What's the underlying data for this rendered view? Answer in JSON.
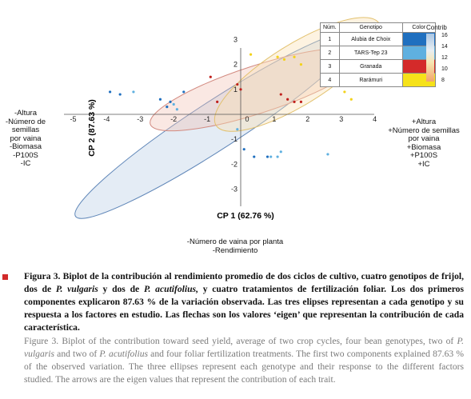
{
  "chart_data": {
    "type": "scatter",
    "xlabel": "CP 1 (62.76 %)",
    "ylabel": "CP 2 (87.63 %)",
    "xlim": [
      -5,
      4
    ],
    "ylim": [
      -3,
      3
    ],
    "x_ticks": [
      "-5",
      "-4",
      "-3",
      "-2",
      "-1",
      "0",
      "1",
      "2",
      "3",
      "4"
    ],
    "y_ticks": [
      "3",
      "2",
      "1",
      "-1",
      "-2",
      "-3"
    ],
    "grid": false,
    "series": [
      {
        "name": "Alubia de Choix",
        "color": "#1f6fbf",
        "points": [
          [
            -3.9,
            0.9
          ],
          [
            -3.6,
            0.8
          ],
          [
            -2.4,
            0.6
          ],
          [
            -2.1,
            0.5
          ],
          [
            -2.2,
            0.3
          ],
          [
            0.1,
            -1.4
          ],
          [
            0.4,
            -1.7
          ],
          [
            0.8,
            -1.7
          ],
          [
            -1.7,
            0.9
          ]
        ]
      },
      {
        "name": "TARS-Tep 23",
        "color": "#5fb0e0",
        "points": [
          [
            -3.2,
            0.9
          ],
          [
            -2.0,
            0.4
          ],
          [
            -1.9,
            0.2
          ],
          [
            -0.1,
            -0.6
          ],
          [
            0.9,
            -1.7
          ],
          [
            1.1,
            -1.7
          ],
          [
            1.2,
            -1.5
          ],
          [
            2.6,
            -1.6
          ]
        ]
      },
      {
        "name": "Granada",
        "color": "#c0201c",
        "points": [
          [
            -0.9,
            1.5
          ],
          [
            -0.1,
            1.2
          ],
          [
            0.0,
            1.0
          ],
          [
            1.2,
            0.8
          ],
          [
            1.4,
            0.6
          ],
          [
            1.6,
            0.5
          ],
          [
            1.8,
            0.5
          ],
          [
            -0.7,
            0.5
          ]
        ]
      },
      {
        "name": "Rarámuri",
        "color": "#f3d21a",
        "points": [
          [
            0.3,
            2.4
          ],
          [
            1.3,
            2.2
          ],
          [
            1.6,
            2.3
          ],
          [
            1.8,
            2.0
          ],
          [
            2.9,
            1.3
          ],
          [
            3.1,
            0.9
          ],
          [
            3.3,
            0.6
          ],
          [
            1.1,
            2.3
          ]
        ]
      }
    ],
    "ellipses": [
      {
        "genotype": "Alubia de Choix",
        "cx": -0.7,
        "cy": -0.4,
        "rx": 6.15,
        "ry": 0.95,
        "angle_deg": -33,
        "color": "#1f6fbf"
      },
      {
        "genotype": "Granada",
        "cx": 0.5,
        "cy": 1.0,
        "rx": 4.1,
        "ry": 0.95,
        "angle_deg": -18,
        "color": "#c0201c"
      },
      {
        "genotype": "Rarámuri",
        "cx": 1.7,
        "cy": 1.6,
        "rx": 3.5,
        "ry": 1.2,
        "angle_deg": -32,
        "color": "#f3d21a"
      }
    ],
    "left_labels": [
      "-Altura",
      "-Número de semillas",
      "por vaina",
      "-Biomasa",
      "-P100S",
      "-IC"
    ],
    "right_labels": [
      "+Altura",
      "+Número de semillas",
      "por vaina",
      "+Biomasa",
      "+P100S",
      "+IC"
    ],
    "bottom_labels": [
      "-Número de vaina por planta",
      "-Rendimiento"
    ],
    "legend_table": {
      "headers": [
        "Núm.",
        "Genotipo",
        "Color"
      ],
      "rows": [
        {
          "num": "1",
          "genotipo": "Alubia de Choix",
          "color": "#1f6fbf"
        },
        {
          "num": "2",
          "genotipo": "TARS-Tep 23",
          "color": "#5fb0e0"
        },
        {
          "num": "3",
          "genotipo": "Granada",
          "color": "#d42a2a"
        },
        {
          "num": "4",
          "genotipo": "Rarámuri",
          "color": "#f6e21a"
        }
      ]
    },
    "colorbar": {
      "title": "Contrib",
      "ticks": [
        "16",
        "14",
        "12",
        "10",
        "8"
      ]
    }
  },
  "caption": {
    "es_parts": [
      {
        "text": "Figura 3. Biplot de la contribución al rendimiento promedio de dos ciclos de cultivo, cuatro genotipos de frijol, dos de ",
        "italic": false
      },
      {
        "text": "P. vulgaris",
        "italic": true
      },
      {
        "text": " y dos de ",
        "italic": false
      },
      {
        "text": "P. acutifolius,",
        "italic": true
      },
      {
        "text": " y cuatro tratamientos de fertilización foliar. Los dos primeros componentes explicaron 87.63 % de la variación observada. Las tres elipses representan a cada genotipo y su respuesta a los factores en estudio. Las flechas son los valores ‘eigen’ que representan la contribución de cada característica.",
        "italic": false
      }
    ],
    "en_parts": [
      {
        "text": "Figure 3. Biplot of the contribution toward seed yield, average of two crop cycles, four bean genotypes, two of ",
        "italic": false
      },
      {
        "text": "P. vulgaris",
        "italic": true
      },
      {
        "text": " and two of ",
        "italic": false
      },
      {
        "text": "P. acutifolius",
        "italic": true
      },
      {
        "text": " and four foliar fertilization treatments. The first two components explained 87.63 % of the observed variation. The three ellipses represent each genotype and their response to the different factors studied. The arrows are the eigen values that represent the contribution of each trait.",
        "italic": false
      }
    ]
  }
}
